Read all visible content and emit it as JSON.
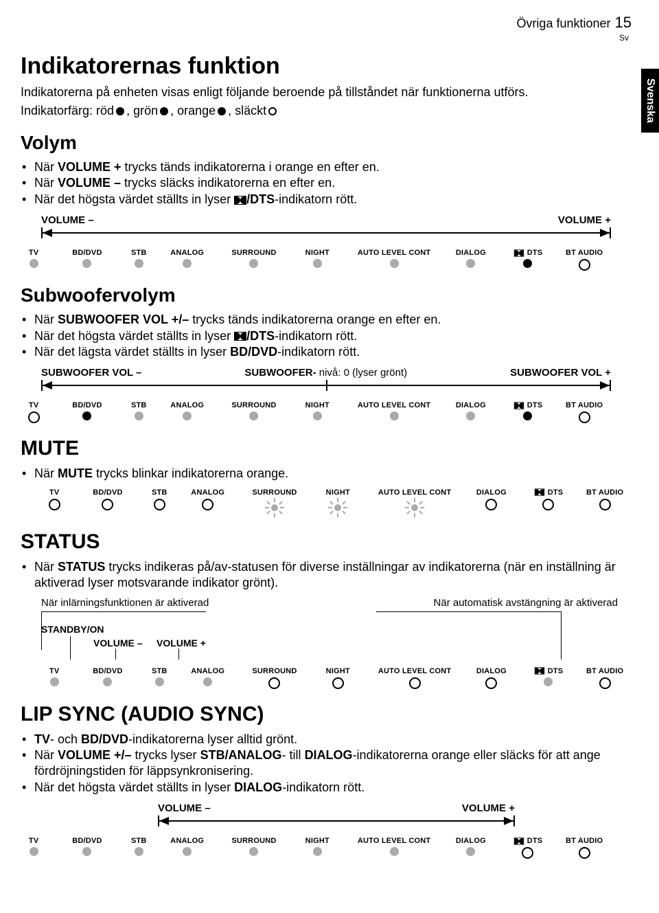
{
  "header": {
    "section": "Övriga funktioner",
    "page": "15",
    "lang": "Sv",
    "sideTab": "Svenska"
  },
  "mainTitle": "Indikatorernas funktion",
  "intro": "Indikatorerna på enheten visas enligt följande beroende på tillståndet när funktionerna utförs.",
  "legend": {
    "prefix": "Indikatorfärg: röd ",
    "c2": ", grön ",
    "c3": ", orange ",
    "c4": ", släckt "
  },
  "labels": {
    "TV": "TV",
    "BDDVD": "BD/DVD",
    "STB": "STB",
    "ANALOG": "ANALOG",
    "SURROUND": "SURROUND",
    "NIGHT": "NIGHT",
    "ALC": "AUTO LEVEL CONT",
    "DIALOG": "DIALOG",
    "DTS": "DTS",
    "BTAUDIO": "BT AUDIO"
  },
  "volym": {
    "title": "Volym",
    "b1a": "När ",
    "b1b": "VOLUME +",
    "b1c": " trycks tänds indikatorerna i orange en efter en.",
    "b2a": "När ",
    "b2b": "VOLUME –",
    "b2c": " trycks släcks indikatorerna en efter en.",
    "b3a": "När det högsta värdet ställts in lyser ",
    "b3b": "/DTS",
    "b3c": "-indikatorn rött.",
    "left": "VOLUME –",
    "right": "VOLUME +"
  },
  "sub": {
    "title": "Subwoofervolym",
    "b1a": "När ",
    "b1b": "SUBWOOFER VOL +/–",
    "b1c": " trycks tänds indikatorerna orange en efter en.",
    "b2a": "När det högsta värdet ställts in lyser ",
    "b2b": "/DTS",
    "b2c": "-indikatorn rött.",
    "b3a": "När det lägsta värdet ställts in lyser ",
    "b3b": "BD/DVD",
    "b3c": "-indikatorn rött.",
    "left": "SUBWOOFER VOL –",
    "mid1": "SUBWOOFER-",
    "mid2": " nivå: 0 (lyser grönt)",
    "right": "SUBWOOFER VOL +"
  },
  "mute": {
    "title": "MUTE",
    "b1a": "När ",
    "b1b": "MUTE",
    "b1c": " trycks blinkar indikatorerna orange."
  },
  "status": {
    "title": "STATUS",
    "p1a": "När ",
    "p1b": "STATUS",
    "p1c": " trycks indikeras på/av-statusen för diverse inställningar av indikatorerna (när en inställning är aktiverad lyser motsvarande indikator grönt).",
    "callL": "När inlärningsfunktionen är aktiverad",
    "callR": "När automatisk avstängning är aktiverad",
    "standby": "STANDBY/ON",
    "vminus": "VOLUME –",
    "vplus": "VOLUME +"
  },
  "lip": {
    "title": "LIP SYNC (AUDIO SYNC)",
    "b1a": "TV",
    "b1b": "- och ",
    "b1c": "BD/DVD",
    "b1d": "-indikatorerna lyser alltid grönt.",
    "b2a": "När ",
    "b2b": "VOLUME +/–",
    "b2c": " trycks lyser ",
    "b2d": "STB/ANALOG",
    "b2e": "- till ",
    "b2f": "DIALOG",
    "b2g": "-indikatorerna orange eller släcks för att ange fördröjningstiden för läppsynkronisering.",
    "b3a": "När det högsta värdet ställts in lyser ",
    "b3b": "DIALOG",
    "b3c": "-indikatorn rött.",
    "left": "VOLUME –",
    "right": "VOLUME +"
  },
  "rows": {
    "volym": {
      "TV": "gray",
      "BDDVD": "gray",
      "STB": "gray",
      "ANALOG": "gray",
      "SURROUND": "gray",
      "NIGHT": "gray",
      "ALC": "gray",
      "DIALOG": "gray",
      "DD": "black",
      "DTS": "",
      "BTAUDIO": "empty"
    },
    "sub": {
      "TV": "empty",
      "BDDVD": "black",
      "STB": "gray",
      "ANALOG": "gray",
      "SURROUND": "gray",
      "NIGHT": "gray",
      "ALC": "gray",
      "DIALOG": "gray",
      "DD": "black",
      "DTS": "",
      "BTAUDIO": "empty"
    },
    "mute": {
      "TV": "empty",
      "BDDVD": "empty",
      "STB": "empty",
      "ANALOG": "empty",
      "SURROUND": "spark",
      "NIGHT": "spark",
      "ALC": "spark",
      "DIALOG": "empty",
      "DD": "empty",
      "DTS": "",
      "BTAUDIO": "empty"
    },
    "status": {
      "TV": "gray",
      "BDDVD": "gray",
      "STB": "gray",
      "ANALOG": "gray",
      "SURROUND": "empty",
      "NIGHT": "empty",
      "ALC": "empty",
      "DIALOG": "empty",
      "DD": "gray",
      "DTS": "",
      "BTAUDIO": "empty"
    },
    "lip": {
      "TV": "gray",
      "BDDVD": "gray",
      "STB": "gray",
      "ANALOG": "gray",
      "SURROUND": "gray",
      "NIGHT": "gray",
      "ALC": "gray",
      "DIALOG": "gray",
      "DD": "empty",
      "DTS": "",
      "BTAUDIO": "empty"
    }
  },
  "colWidths": {
    "TV": 60,
    "BDDVD": 100,
    "STB": 55,
    "ANALOG": 90,
    "SURROUND": 110,
    "NIGHT": 80,
    "ALC": 150,
    "DIALOG": 80,
    "DDDTS": 90,
    "BTAUDIO": 80
  }
}
